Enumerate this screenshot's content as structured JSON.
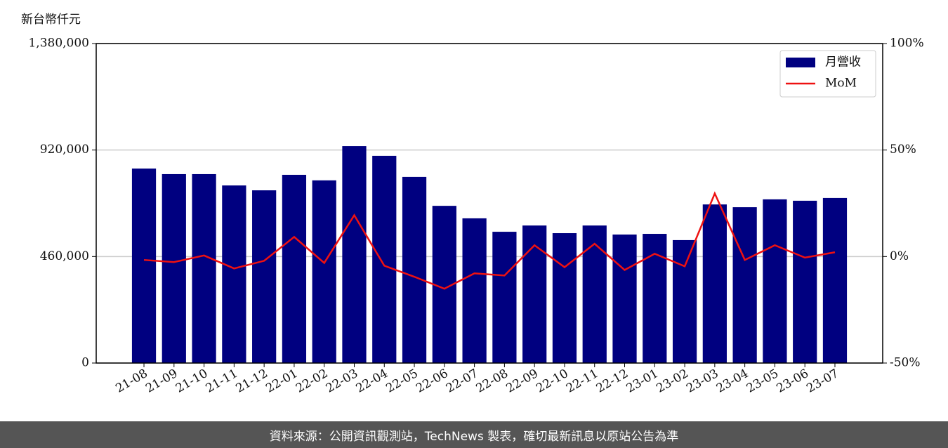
{
  "chart_data": {
    "type": "combo",
    "ylabel": "新台幣仟元",
    "source": "資料來源：公開資訊觀測站，TechNews 製表，確切最新訊息以原站公告為準",
    "categories": [
      "21-08",
      "21-09",
      "21-10",
      "21-11",
      "21-12",
      "22-01",
      "22-02",
      "22-03",
      "22-04",
      "22-05",
      "22-06",
      "22-07",
      "22-08",
      "22-09",
      "22-10",
      "22-11",
      "22-12",
      "23-01",
      "23-02",
      "23-03",
      "23-04",
      "23-05",
      "23-06",
      "23-07"
    ],
    "series": [
      {
        "name": "月營收",
        "type": "bar",
        "color": "#000080",
        "axis": "y",
        "values": [
          840000,
          816000,
          816000,
          767000,
          746000,
          813000,
          789000,
          937000,
          895000,
          804000,
          679000,
          625000,
          567000,
          594000,
          561000,
          594000,
          555000,
          558000,
          531000,
          685000,
          673000,
          707000,
          701000,
          713000
        ]
      },
      {
        "name": "MoM",
        "type": "line",
        "color": "#ee1111",
        "axis": "y2",
        "values": [
          -1.6,
          -2.6,
          0.5,
          -5.6,
          -2,
          9.2,
          -3,
          19.4,
          -4.3,
          -9.5,
          -15.1,
          -7.9,
          -8.9,
          5.3,
          -5,
          6,
          -6.3,
          1.3,
          -4.6,
          29.6,
          -1.6,
          5.3,
          -0.5,
          2
        ]
      }
    ],
    "ylim": [
      0,
      1380000
    ],
    "yticks": [
      0,
      {
        "value": 460000,
        "label": "460,000"
      },
      {
        "value": 920000,
        "label": "920,000"
      },
      {
        "value": 1380000,
        "label": "1,380,000"
      }
    ],
    "y2lim": [
      -50,
      100
    ],
    "y2ticks": [
      {
        "value": -50,
        "label": "-50%"
      },
      {
        "value": 0,
        "label": "0%"
      },
      {
        "value": 50,
        "label": "50%"
      },
      {
        "value": 100,
        "label": "100%"
      }
    ],
    "grid": true,
    "legend": "upper right"
  }
}
